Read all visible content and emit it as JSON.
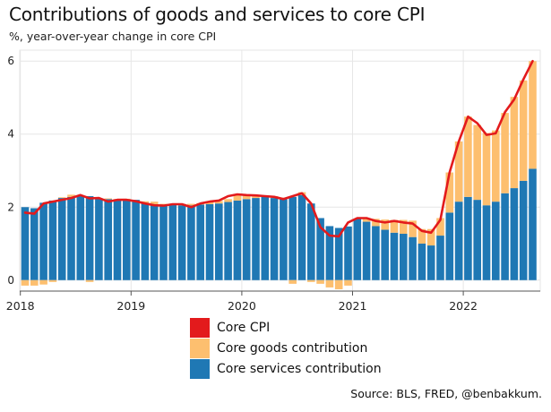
{
  "chart_data": {
    "type": "bar",
    "title": "Contributions of goods and services to core CPI",
    "subtitle": "%, year-over-year change in core CPI",
    "source": "Source: BLS, FRED, @benbakkum.",
    "x_tick_labels": [
      "2018",
      "2019",
      "2020",
      "2021",
      "2022"
    ],
    "y_tick_labels": [
      "0",
      "2",
      "4",
      "6"
    ],
    "ylim": [
      -0.3,
      6.3
    ],
    "grid": true,
    "legend_position": "bottom-center",
    "colors": {
      "core_cpi": "#e31a1c",
      "goods": "#fdbf6f",
      "services": "#1f78b4"
    },
    "x_start": "2018-01",
    "legend": [
      "Core CPI",
      "Core goods contribution",
      "Core services contribution"
    ],
    "series": [
      {
        "key": "services",
        "name": "Core services contribution",
        "values": [
          2.0,
          1.97,
          2.12,
          2.18,
          2.25,
          2.28,
          2.3,
          2.3,
          2.24,
          2.22,
          2.2,
          2.21,
          2.2,
          2.12,
          2.08,
          2.06,
          2.06,
          2.05,
          2.05,
          2.07,
          2.08,
          2.1,
          2.14,
          2.18,
          2.22,
          2.25,
          2.28,
          2.25,
          2.22,
          2.28,
          2.33,
          2.1,
          1.7,
          1.48,
          1.43,
          1.47,
          1.68,
          1.6,
          1.48,
          1.38,
          1.3,
          1.27,
          1.18,
          1.0,
          0.95,
          1.22,
          1.85,
          2.15,
          2.28,
          2.2,
          2.05,
          2.15,
          2.38,
          2.52,
          2.72,
          3.05
        ]
      },
      {
        "key": "goods",
        "name": "Core goods contribution",
        "values": [
          -0.15,
          -0.15,
          -0.12,
          -0.05,
          0.02,
          0.06,
          0.02,
          -0.05,
          0.0,
          0.02,
          0.02,
          0.02,
          0.0,
          0.04,
          0.07,
          0.03,
          0.03,
          0.04,
          0.04,
          0.04,
          0.08,
          0.07,
          0.08,
          0.18,
          0.12,
          0.08,
          0.02,
          0.05,
          0.04,
          -0.1,
          0.08,
          -0.05,
          -0.1,
          -0.2,
          -0.25,
          -0.15,
          0.0,
          0.1,
          0.2,
          0.28,
          0.35,
          0.38,
          0.45,
          0.4,
          0.45,
          0.48,
          1.1,
          1.65,
          2.2,
          2.05,
          1.98,
          1.95,
          2.2,
          2.5,
          2.75,
          2.95
        ]
      },
      {
        "key": "core_cpi",
        "name": "Core CPI",
        "type": "line",
        "values": [
          1.85,
          1.82,
          2.1,
          2.15,
          2.2,
          2.25,
          2.33,
          2.24,
          2.25,
          2.15,
          2.2,
          2.2,
          2.16,
          2.1,
          2.05,
          2.04,
          2.08,
          2.08,
          2.0,
          2.1,
          2.15,
          2.18,
          2.3,
          2.35,
          2.33,
          2.32,
          2.3,
          2.28,
          2.22,
          2.3,
          2.38,
          2.1,
          1.45,
          1.22,
          1.2,
          1.58,
          1.7,
          1.7,
          1.62,
          1.58,
          1.62,
          1.58,
          1.55,
          1.35,
          1.3,
          1.65,
          2.95,
          3.8,
          4.48,
          4.3,
          3.98,
          4.02,
          4.6,
          4.95,
          5.5,
          6.0
        ]
      }
    ]
  }
}
